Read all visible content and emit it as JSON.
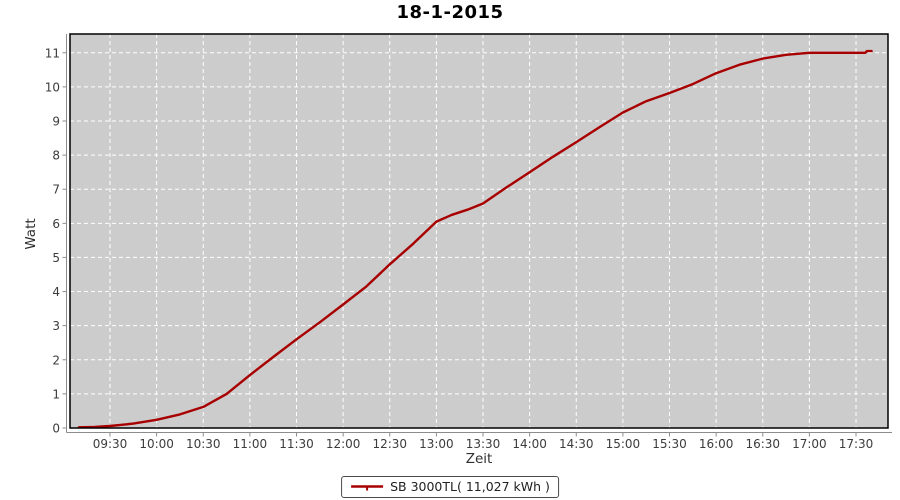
{
  "chart_data": {
    "type": "line",
    "title": "18-1-2015",
    "xlabel": "Zeit",
    "ylabel": "Watt",
    "x_ticks": [
      "09:30",
      "10:00",
      "10:30",
      "11:00",
      "11:30",
      "12:00",
      "12:30",
      "13:00",
      "13:30",
      "14:00",
      "14:30",
      "15:00",
      "15:30",
      "16:00",
      "16:30",
      "17:00",
      "17:30"
    ],
    "y_ticks": [
      0,
      1,
      2,
      3,
      4,
      5,
      6,
      7,
      8,
      9,
      10,
      11
    ],
    "x_range_hours": [
      9.071,
      17.843
    ],
    "y_range": [
      0,
      11.55
    ],
    "grid": true,
    "legend_position": "bottom",
    "plot_bg": "#cccccc",
    "grid_color": "#ffffff",
    "axis_color": "#8c8c8c",
    "tick_label_color": "#3c3c3c",
    "series": [
      {
        "name": "SB 3000TL( 11,027 kWh )",
        "color": "#a80000",
        "points": [
          [
            "09:10",
            0.02
          ],
          [
            "09:20",
            0.03
          ],
          [
            "09:30",
            0.06
          ],
          [
            "09:45",
            0.13
          ],
          [
            "10:00",
            0.24
          ],
          [
            "10:15",
            0.4
          ],
          [
            "10:30",
            0.62
          ],
          [
            "10:45",
            1.0
          ],
          [
            "11:00",
            1.55
          ],
          [
            "11:15",
            2.08
          ],
          [
            "11:30",
            2.6
          ],
          [
            "11:45",
            3.1
          ],
          [
            "12:00",
            3.62
          ],
          [
            "12:15",
            4.15
          ],
          [
            "12:30",
            4.8
          ],
          [
            "12:45",
            5.4
          ],
          [
            "13:00",
            6.05
          ],
          [
            "13:10",
            6.25
          ],
          [
            "13:20",
            6.4
          ],
          [
            "13:30",
            6.58
          ],
          [
            "13:45",
            7.05
          ],
          [
            "14:00",
            7.5
          ],
          [
            "14:15",
            7.95
          ],
          [
            "14:30",
            8.38
          ],
          [
            "14:45",
            8.82
          ],
          [
            "15:00",
            9.25
          ],
          [
            "15:15",
            9.58
          ],
          [
            "15:30",
            9.82
          ],
          [
            "15:45",
            10.08
          ],
          [
            "16:00",
            10.4
          ],
          [
            "16:15",
            10.65
          ],
          [
            "16:30",
            10.83
          ],
          [
            "16:45",
            10.94
          ],
          [
            "17:00",
            11.0
          ],
          [
            "17:15",
            11.0
          ],
          [
            "17:30",
            11.0
          ],
          [
            "17:36",
            11.0
          ],
          [
            "17:37",
            11.05
          ],
          [
            "17:40",
            11.05
          ]
        ]
      }
    ]
  }
}
